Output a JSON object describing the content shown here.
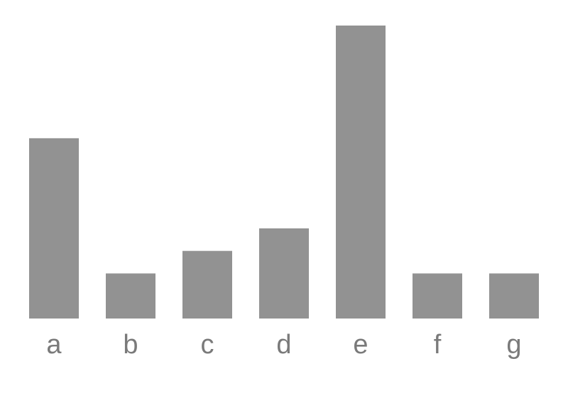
{
  "chart_data": {
    "type": "bar",
    "categories": [
      "a",
      "b",
      "c",
      "d",
      "e",
      "f",
      "g"
    ],
    "values": [
      8,
      2,
      3,
      4,
      13,
      2,
      2
    ],
    "title": "",
    "xlabel": "",
    "ylabel": "",
    "ylim": [
      0,
      13
    ],
    "grid": false,
    "bar_color": "#929292",
    "tick_label_color": "#7a7a7a"
  }
}
